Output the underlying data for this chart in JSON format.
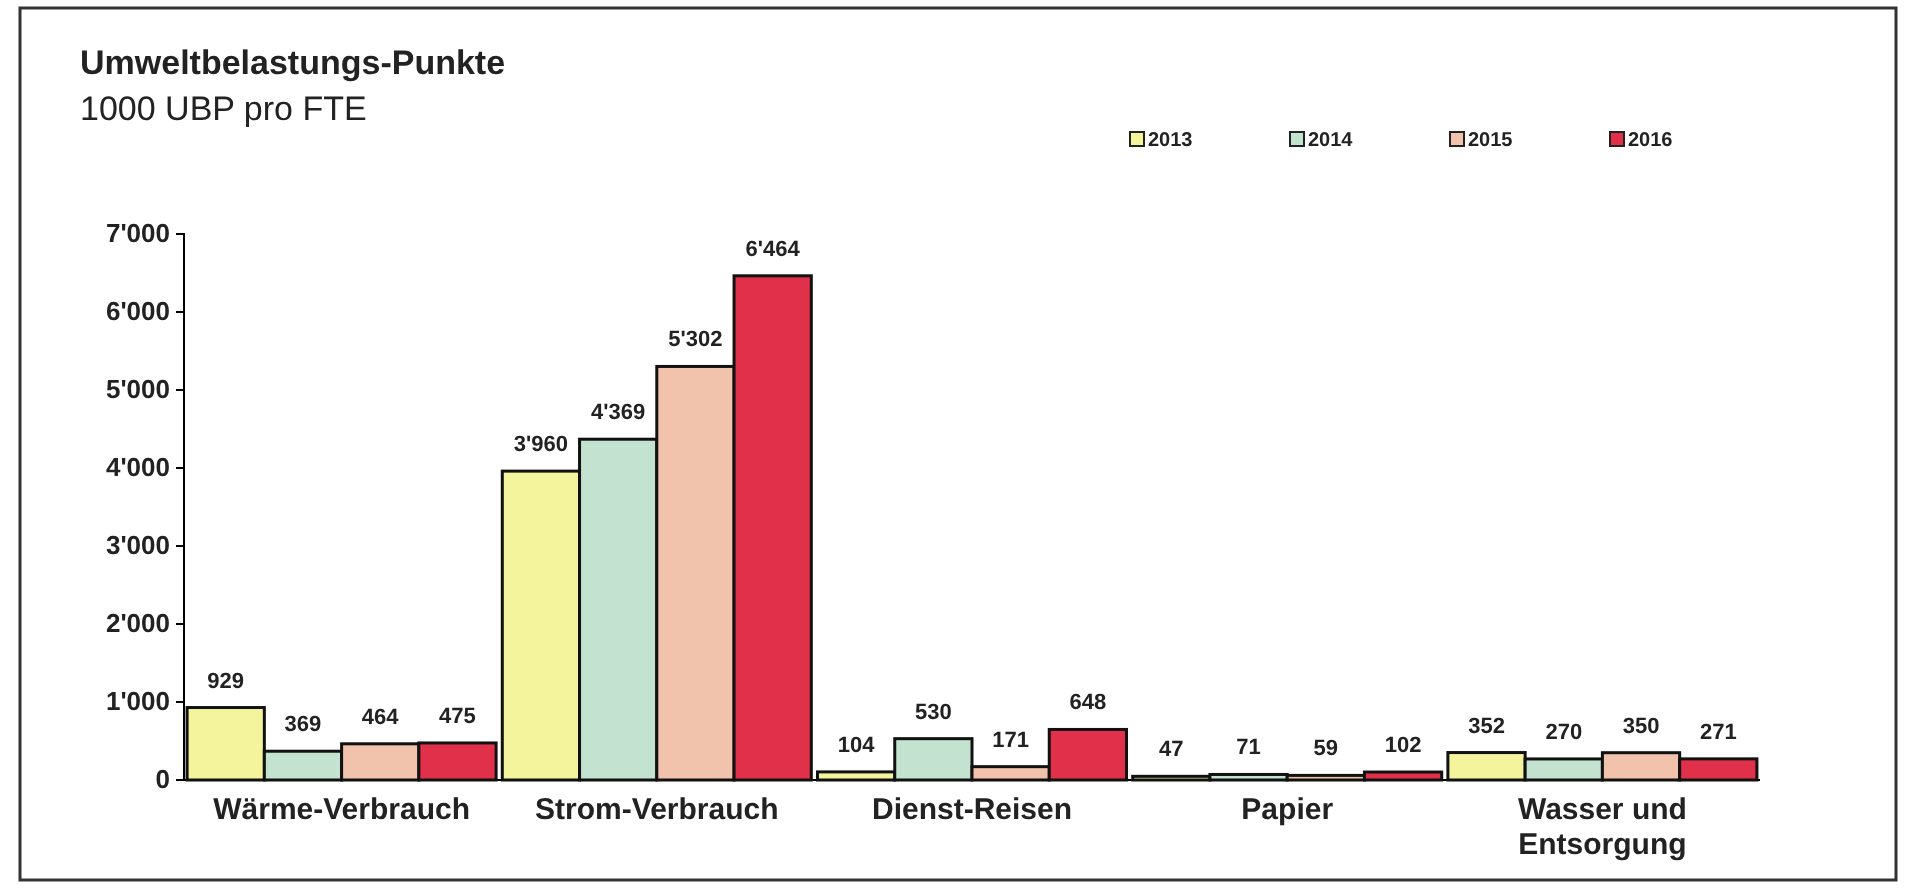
{
  "chart_data": {
    "type": "bar",
    "title": "Umweltbelastungs-Punkte",
    "subtitle": "1000 UBP pro FTE",
    "categories": [
      "Wärme-Verbrauch",
      "Strom-Verbrauch",
      "Dienst-Reisen",
      "Papier",
      "Wasser und Entsorgung"
    ],
    "series": [
      {
        "name": "2013",
        "color": "#f4f49c",
        "values": [
          929,
          3960,
          104,
          47,
          352
        ],
        "value_labels": [
          "929",
          "3'960",
          "104",
          "47",
          "352"
        ]
      },
      {
        "name": "2014",
        "color": "#c3e2cf",
        "values": [
          369,
          4369,
          530,
          71,
          270
        ],
        "value_labels": [
          "369",
          "4'369",
          "530",
          "71",
          "270"
        ]
      },
      {
        "name": "2015",
        "color": "#f1c3ad",
        "values": [
          464,
          5302,
          171,
          59,
          350
        ],
        "value_labels": [
          "464",
          "5'302",
          "171",
          "59",
          "350"
        ]
      },
      {
        "name": "2016",
        "color": "#e0304a",
        "values": [
          475,
          6464,
          648,
          102,
          271
        ],
        "value_labels": [
          "475",
          "6'464",
          "648",
          "102",
          "271"
        ]
      }
    ],
    "ylim": [
      0,
      7000
    ],
    "yticks": [
      0,
      {
        "value": 1000,
        "label": "1'000"
      },
      {
        "value": 2000,
        "label": "2'000"
      },
      {
        "value": 3000,
        "label": "3'000"
      },
      {
        "value": 4000,
        "label": "4'000"
      },
      {
        "value": 5000,
        "label": "5'000"
      },
      {
        "value": 6000,
        "label": "6'000"
      },
      {
        "value": 7000,
        "label": "7'000"
      }
    ],
    "grid": false,
    "legend": "top right"
  }
}
